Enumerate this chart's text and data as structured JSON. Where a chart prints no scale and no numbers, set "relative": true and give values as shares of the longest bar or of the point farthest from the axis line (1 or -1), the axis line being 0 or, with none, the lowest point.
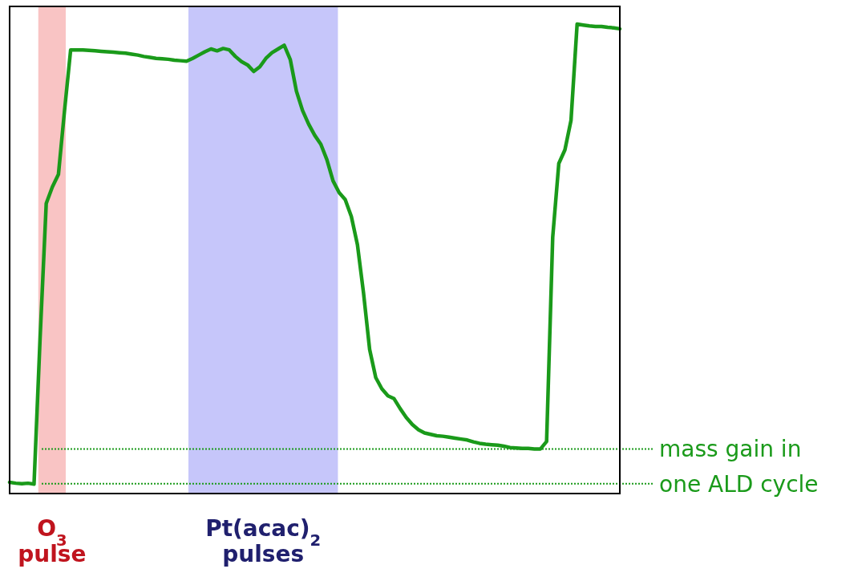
{
  "chart_data": {
    "type": "line",
    "relative": true,
    "line_style": "solid",
    "categories": [
      null,
      null,
      null,
      null,
      null,
      null,
      null,
      null,
      null,
      null,
      null,
      null,
      null,
      null,
      null,
      null,
      null,
      null,
      null,
      null,
      null,
      null,
      null,
      null,
      null,
      null,
      null,
      null,
      null,
      null,
      null,
      null,
      null,
      null,
      null,
      null,
      null,
      null,
      null,
      null,
      null,
      null,
      null,
      null,
      null,
      null,
      null,
      null,
      null,
      null,
      null,
      null,
      null,
      null,
      null,
      null,
      null,
      null,
      null,
      null,
      null,
      null,
      null,
      null,
      null,
      null,
      null,
      null,
      null,
      null,
      null,
      null,
      null,
      null,
      null,
      null,
      null,
      null,
      null,
      null,
      null,
      null,
      null,
      null,
      null,
      null,
      null,
      null,
      null,
      null,
      null,
      null,
      null,
      null,
      null,
      null,
      null,
      null,
      null,
      null,
      null
    ],
    "series": [
      {
        "color": "#1a9a1a",
        "values": [
          0.024,
          0.022,
          0.021,
          0.022,
          0.02,
          0.333,
          0.618,
          0.653,
          0.68,
          0.816,
          0.945,
          0.945,
          0.945,
          0.944,
          0.943,
          0.942,
          0.941,
          0.94,
          0.939,
          0.938,
          0.936,
          0.934,
          0.931,
          0.929,
          0.927,
          0.926,
          0.925,
          0.923,
          0.922,
          0.921,
          0.927,
          0.934,
          0.941,
          0.947,
          0.943,
          0.948,
          0.945,
          0.931,
          0.92,
          0.913,
          0.899,
          0.909,
          0.927,
          0.939,
          0.947,
          0.955,
          0.924,
          0.857,
          0.816,
          0.787,
          0.763,
          0.744,
          0.711,
          0.666,
          0.641,
          0.626,
          0.59,
          0.53,
          0.427,
          0.307,
          0.247,
          0.223,
          0.208,
          0.202,
          0.181,
          0.162,
          0.147,
          0.136,
          0.129,
          0.126,
          0.123,
          0.122,
          0.12,
          0.118,
          0.116,
          0.114,
          0.11,
          0.107,
          0.105,
          0.104,
          0.103,
          0.101,
          0.098,
          0.097,
          0.096,
          0.096,
          0.095,
          0.095,
          0.111,
          0.546,
          0.703,
          0.732,
          0.795,
          1.0,
          0.998,
          0.996,
          0.995,
          0.995,
          0.993,
          0.992,
          0.99
        ]
      }
    ],
    "ref_lines": [
      {
        "axis": "y",
        "value": 0.095,
        "color": "#1a9a1a",
        "line_style": "dotted"
      },
      {
        "axis": "y",
        "value": 0.021,
        "color": "#1a9a1a",
        "line_style": "dotted"
      }
    ],
    "annotations": [
      "O$_{3}$ pulse",
      "Pt(acac)$_{2}$ pulses",
      "mass gain in one ALD cycle"
    ]
  }
}
